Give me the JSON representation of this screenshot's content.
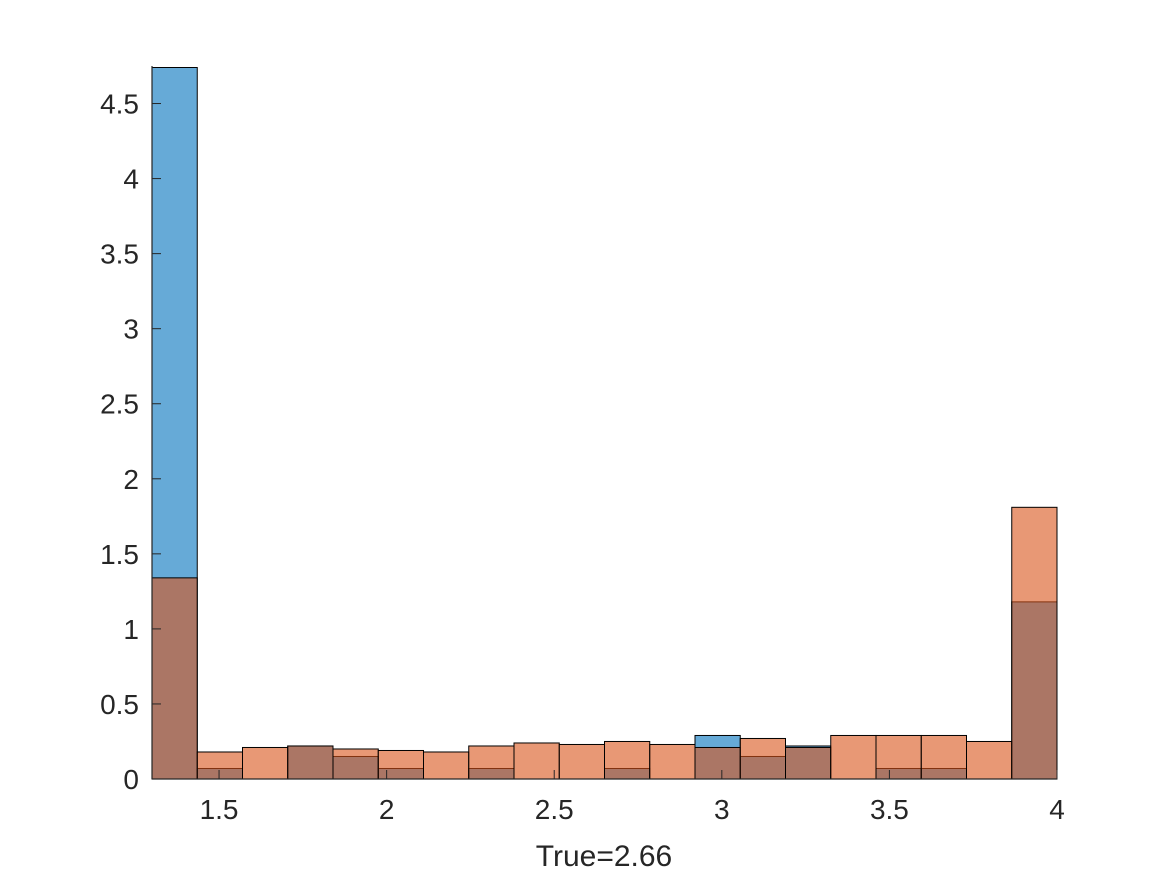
{
  "chart_data": {
    "type": "bar",
    "xlabel": "True=2.66",
    "ylabel": "",
    "title": "",
    "xlim": [
      1.3,
      4.0
    ],
    "ylim": [
      0,
      4.75
    ],
    "xticks": [
      1.5,
      2,
      2.5,
      3,
      3.5,
      4
    ],
    "xtick_labels": [
      "1.5",
      "2",
      "2.5",
      "3",
      "3.5",
      "4"
    ],
    "yticks": [
      0,
      0.5,
      1,
      1.5,
      2,
      2.5,
      3,
      3.5,
      4,
      4.5
    ],
    "ytick_labels": [
      "0",
      "0.5",
      "1",
      "1.5",
      "2",
      "2.5",
      "3",
      "3.5",
      "4",
      "4.5"
    ],
    "grid": false,
    "legend": "none",
    "bin_edges": [
      1.3,
      1.435,
      1.57,
      1.705,
      1.84,
      1.975,
      2.11,
      2.245,
      2.38,
      2.515,
      2.65,
      2.785,
      2.92,
      3.055,
      3.19,
      3.325,
      3.46,
      3.595,
      3.73,
      3.865,
      4.0
    ],
    "series": [
      {
        "color": "#0072BD",
        "values": [
          4.74,
          0.07,
          0.0,
          0.22,
          0.15,
          0.07,
          0.0,
          0.07,
          0.0,
          0.0,
          0.07,
          0.0,
          0.29,
          0.15,
          0.22,
          0.0,
          0.07,
          0.07,
          0.0,
          1.18
        ]
      },
      {
        "color": "#D95319",
        "values": [
          1.34,
          0.18,
          0.21,
          0.22,
          0.2,
          0.19,
          0.18,
          0.22,
          0.24,
          0.23,
          0.25,
          0.23,
          0.21,
          0.27,
          0.21,
          0.29,
          0.29,
          0.29,
          0.25,
          1.81
        ]
      }
    ]
  }
}
